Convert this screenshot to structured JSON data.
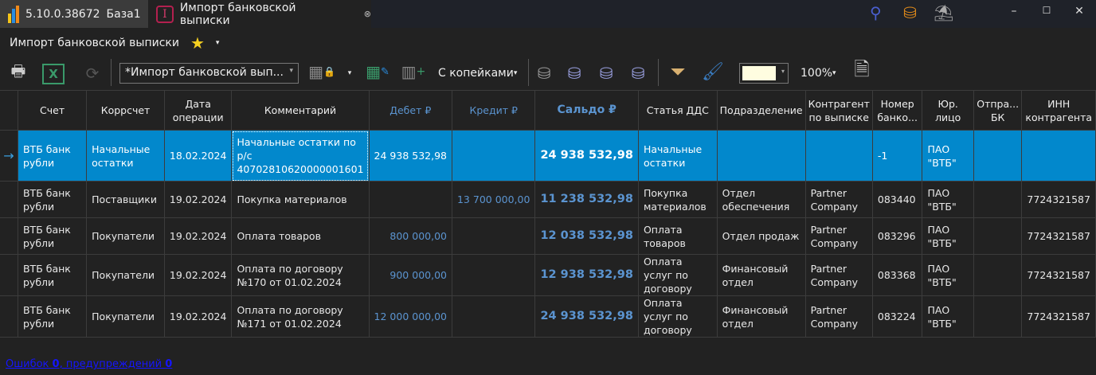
{
  "titlebar": {
    "version": "5.10.0.38672",
    "base": "База1",
    "tab_title": "Импорт банковской выписки",
    "close": "⊗"
  },
  "window_controls": {
    "minimize": "–",
    "maximize": "☐",
    "close": "✕"
  },
  "page": {
    "title": "Импорт банковской выписки",
    "fav_dropdown": "▾"
  },
  "toolbar": {
    "layout_combo": "*Импорт банковской вып...",
    "kopecks": "С копейками",
    "kopecks_arrow": "▾",
    "zoom": "100%",
    "zoom_arrow": "▾",
    "combo_arrow": "▾",
    "layout_arrow": "▾",
    "color_arrow": "▾",
    "color_value": "#fffde0"
  },
  "table": {
    "columns": [
      "Счет",
      "Коррсчет",
      "Дата операции",
      "Комментарий",
      "Дебет ₽",
      "Кредит ₽",
      "Сальдо ₽",
      "Статья ДДС",
      "Подразделение",
      "Контрагент по выписке",
      "Номер банко...",
      "Юр. лицо",
      "Отпра... БК",
      "ИНН контрагента"
    ],
    "current_row_marker": "→",
    "rows": [
      [
        "ВТБ банк рубли",
        "Начальные остатки",
        "18.02.2024",
        "Начальные остатки по р/с 40702810620000001601",
        "24 938 532,98",
        "",
        "24 938 532,98",
        "Начальные остатки",
        "",
        "",
        "-1",
        "ПАО \"ВТБ\"",
        "",
        ""
      ],
      [
        "ВТБ банк рубли",
        "Поставщики",
        "19.02.2024",
        "Покупка материалов",
        "",
        "13 700 000,00",
        "11 238 532,98",
        "Покупка материалов",
        "Отдел обеспечения",
        "Partner Company",
        "083440",
        "ПАО \"ВТБ\"",
        "",
        "7724321587"
      ],
      [
        "ВТБ банк рубли",
        "Покупатели",
        "19.02.2024",
        "Оплата товаров",
        "800 000,00",
        "",
        "12 038 532,98",
        "Оплата товаров",
        "Отдел продаж",
        "Partner Company",
        "083296",
        "ПАО \"ВТБ\"",
        "",
        "7724321587"
      ],
      [
        "ВТБ банк рубли",
        "Покупатели",
        "19.02.2024",
        "Оплата по договору №170 от 01.02.2024",
        "900 000,00",
        "",
        "12 938 532,98",
        "Оплата услуг по договору",
        "Финансовый отдел",
        "Partner Company",
        "083368",
        "ПАО \"ВТБ\"",
        "",
        "7724321587"
      ],
      [
        "ВТБ банк рубли",
        "Покупатели",
        "19.02.2024",
        "Оплата по договору №171 от 01.02.2024",
        "12 000 000,00",
        "",
        "24 938 532,98",
        "Оплата услуг по договору",
        "Финансовый отдел",
        "Partner Company",
        "083224",
        "ПАО \"ВТБ\"",
        "",
        "7724321587"
      ]
    ]
  },
  "status": {
    "errors_label": "Ошибок ",
    "errors": "0",
    "warnings_label": ", предупреждений ",
    "warnings": "0"
  },
  "colors": {
    "selection": "#0288cc",
    "accent_blue": "#5b94d0",
    "status_link": "#1515ff"
  }
}
